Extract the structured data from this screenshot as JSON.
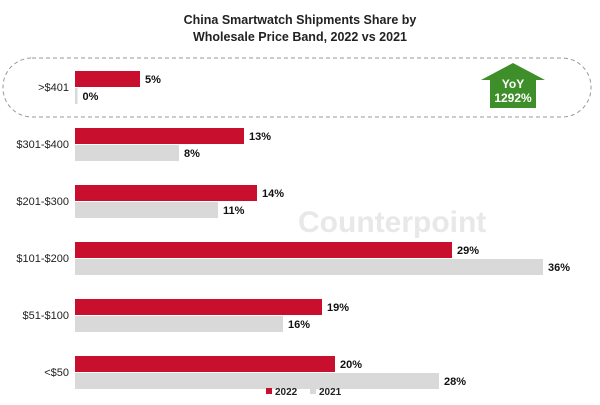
{
  "chart_data": {
    "type": "bar",
    "orientation": "horizontal",
    "title": [
      "China Smartwatch Shipments Share by",
      "Wholesale Price Band, 2022 vs 2021"
    ],
    "categories": [
      ">$401",
      "$301-$400",
      "$201-$300",
      "$101-$200",
      "$51-$100",
      "<$50"
    ],
    "series": [
      {
        "name": "2022",
        "values": [
          5,
          13,
          14,
          29,
          19,
          20
        ],
        "labels": [
          "5%",
          "13%",
          "14%",
          "29%",
          "19%",
          "20%"
        ],
        "color": "#c8102e"
      },
      {
        "name": "2021",
        "values": [
          0,
          8,
          11,
          36,
          16,
          28
        ],
        "labels": [
          "0%",
          "8%",
          "11%",
          "36%",
          "16%",
          "28%"
        ],
        "color": "#d9d9d9"
      }
    ],
    "xlim": [
      0,
      40
    ],
    "grid": false,
    "legend": "bottom-center",
    "annotation": {
      "line1": "YoY",
      "line2": "1292%",
      "color": "#3e8e2a",
      "target_category": ">$401"
    },
    "watermark": "Counterpoint"
  }
}
